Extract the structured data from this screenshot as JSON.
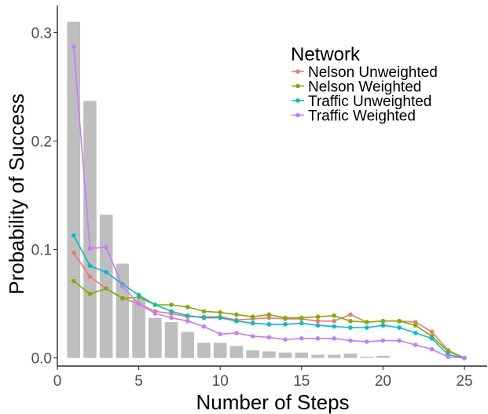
{
  "chart_data": {
    "type": "line",
    "xlabel": "Number of Steps",
    "ylabel": "Probability of Success",
    "xlim": [
      0,
      26.4
    ],
    "ylim": [
      -0.0075,
      0.325
    ],
    "x_ticks": [
      0,
      5,
      10,
      15,
      20,
      25
    ],
    "y_ticks": [
      0.0,
      0.1,
      0.2,
      0.3
    ],
    "x_tick_labels": [
      "0",
      "5",
      "10",
      "15",
      "20",
      "25"
    ],
    "y_tick_labels": [
      "0.0",
      "0.1",
      "0.2",
      "0.3"
    ],
    "grid": false,
    "legend": {
      "title": "Network",
      "position": "top-right"
    },
    "bars": {
      "color": "#bebebe",
      "x": [
        1,
        2,
        3,
        4,
        5,
        6,
        7,
        8,
        9,
        10,
        11,
        12,
        13,
        14,
        15,
        16,
        17,
        18,
        19,
        20,
        21,
        22,
        23,
        24,
        25
      ],
      "values": [
        0.31,
        0.237,
        0.132,
        0.087,
        0.054,
        0.037,
        0.033,
        0.024,
        0.014,
        0.014,
        0.011,
        0.007,
        0.006,
        0.005,
        0.005,
        0.003,
        0.003,
        0.004,
        0.001,
        0.002,
        0.0,
        0.0,
        0.0,
        0.0,
        0.0
      ]
    },
    "x": [
      1,
      2,
      3,
      4,
      5,
      6,
      7,
      8,
      9,
      10,
      11,
      12,
      13,
      14,
      15,
      16,
      17,
      18,
      19,
      20,
      21,
      22,
      23,
      24,
      25
    ],
    "series": [
      {
        "name": "Nelson Unweighted",
        "color": "#f8766d",
        "values": [
          0.097,
          0.075,
          0.064,
          0.055,
          0.05,
          0.043,
          0.041,
          0.038,
          0.038,
          0.038,
          0.035,
          0.036,
          0.037,
          0.036,
          0.036,
          0.034,
          0.034,
          0.04,
          0.033,
          0.034,
          0.034,
          0.033,
          0.024,
          0.007,
          0.0
        ]
      },
      {
        "name": "Nelson Weighted",
        "color": "#7cae00",
        "values": [
          0.071,
          0.059,
          0.064,
          0.055,
          0.056,
          0.049,
          0.049,
          0.047,
          0.043,
          0.042,
          0.04,
          0.038,
          0.04,
          0.037,
          0.037,
          0.038,
          0.039,
          0.034,
          0.033,
          0.034,
          0.034,
          0.03,
          0.02,
          0.006,
          0.0
        ]
      },
      {
        "name": "Traffic Unweighted",
        "color": "#00bfc4",
        "values": [
          0.113,
          0.085,
          0.079,
          0.068,
          0.058,
          0.049,
          0.043,
          0.039,
          0.037,
          0.037,
          0.034,
          0.032,
          0.031,
          0.031,
          0.032,
          0.03,
          0.029,
          0.028,
          0.028,
          0.03,
          0.028,
          0.023,
          0.018,
          0.003,
          0.0
        ]
      },
      {
        "name": "Traffic Weighted",
        "color": "#c77cff",
        "values": [
          0.287,
          0.101,
          0.102,
          0.066,
          0.05,
          0.041,
          0.037,
          0.034,
          0.029,
          0.022,
          0.023,
          0.02,
          0.019,
          0.017,
          0.018,
          0.018,
          0.018,
          0.016,
          0.015,
          0.016,
          0.016,
          0.012,
          0.008,
          0.001,
          0.0
        ]
      }
    ]
  }
}
